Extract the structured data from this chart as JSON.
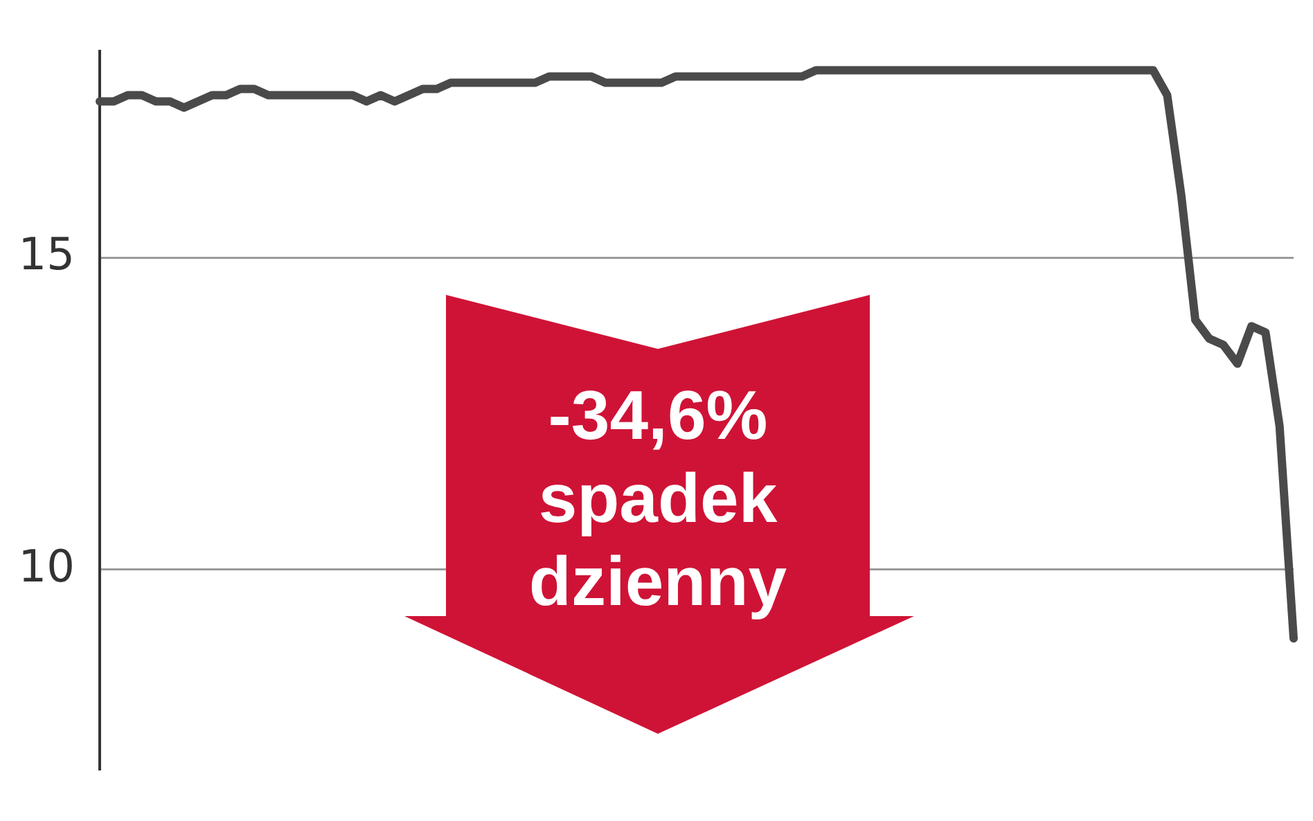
{
  "chart_data": {
    "type": "line",
    "categories": [
      null,
      null,
      null,
      null,
      null,
      null,
      null,
      null,
      null,
      null,
      null,
      null,
      null,
      null,
      null,
      null,
      null,
      null,
      null,
      null,
      null,
      null,
      null,
      null,
      null,
      null,
      null,
      null,
      null,
      null,
      null,
      null,
      null,
      null,
      null,
      null,
      null,
      null,
      null,
      null,
      null,
      null,
      null,
      null,
      null,
      null,
      null,
      null,
      null,
      null,
      null,
      null,
      null,
      null,
      null,
      null,
      null,
      null,
      null,
      null,
      null,
      null,
      null,
      null,
      null,
      null,
      null,
      null,
      null,
      null,
      null,
      null,
      null,
      null,
      null,
      null,
      null,
      null,
      null,
      null,
      null,
      null,
      null,
      null,
      null,
      null
    ],
    "values": [
      17.5,
      17.5,
      17.6,
      17.6,
      17.5,
      17.5,
      17.4,
      17.5,
      17.6,
      17.6,
      17.7,
      17.7,
      17.6,
      17.6,
      17.6,
      17.6,
      17.6,
      17.6,
      17.6,
      17.5,
      17.6,
      17.5,
      17.6,
      17.7,
      17.7,
      17.8,
      17.8,
      17.8,
      17.8,
      17.8,
      17.8,
      17.8,
      17.9,
      17.9,
      17.9,
      17.9,
      17.8,
      17.8,
      17.8,
      17.8,
      17.8,
      17.9,
      17.9,
      17.9,
      17.9,
      17.9,
      17.9,
      17.9,
      17.9,
      17.9,
      17.9,
      18.0,
      18.0,
      18.0,
      18.0,
      18.0,
      18.0,
      18.0,
      18.0,
      18.0,
      18.0,
      18.0,
      18.0,
      18.0,
      18.0,
      18.0,
      18.0,
      18.0,
      18.0,
      18.0,
      18.0,
      18.0,
      18.0,
      18.0,
      18.0,
      18.0,
      17.6,
      16.0,
      14.0,
      13.7,
      13.6,
      13.3,
      13.9,
      13.8,
      12.3,
      8.9
    ],
    "color": "#4a4a4a",
    "ylim": [
      6.8,
      18.3
    ],
    "yticks": [
      10,
      15
    ],
    "grid": "y",
    "tick_labels": "y",
    "annotations": [
      "-34,6% spadek dzienny"
    ]
  }
}
